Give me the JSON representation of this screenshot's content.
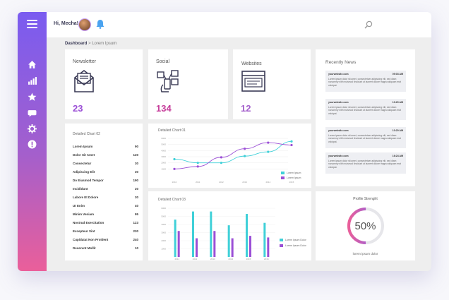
{
  "header": {
    "greeting": "Hi, Mecha!"
  },
  "breadcrumb": {
    "root": "Dashboard",
    "separator": " > ",
    "current": "Lorem Ipsum"
  },
  "colors": {
    "accent_purple": "#7a5cf0",
    "accent_pink": "#ea5f9a",
    "cyan": "#3fd0d8",
    "violet": "#9b4fd6"
  },
  "stats": [
    {
      "title": "Newsletter",
      "value": "23",
      "icon": "envelope-icon",
      "color": "#9b4fd6"
    },
    {
      "title": "Social",
      "value": "134",
      "icon": "social-icon",
      "color": "#c63c9a"
    },
    {
      "title": "Websites",
      "value": "12",
      "icon": "website-icon",
      "color": "#a45fcc"
    }
  ],
  "news": {
    "title": "Recently News",
    "items": [
      {
        "site": "yourwebsite.com",
        "time": "09:03 AM",
        "text": "Lorem ipsum dolor sit amet, consectetuer adipiscing elit, sed diam nonummy nibh euismod tincidunt ut laoreet dolore magna aliquam erat volutpat."
      },
      {
        "site": "yourwebsite.com",
        "time": "10:20 AM",
        "text": "Lorem ipsum dolor sit amet, consectetuer adipiscing elit, sed diam nonummy nibh euismod tincidunt ut laoreet dolore magna aliquam erat volutpat."
      },
      {
        "site": "yourwebsite.com",
        "time": "10:20 AM",
        "text": "Lorem ipsum dolor sit amet, consectetuer adipiscing elit, sed diam nonummy nibh euismod tincidunt ut laoreet dolore magna aliquam erat volutpat."
      },
      {
        "site": "yourwebsite.com",
        "time": "16:24 AM",
        "text": "Lorem ipsum dolor sit amet, consectetuer adipiscing elit, sed diam nonummy nibh euismod tincidunt ut laoreet dolore magna aliquam erat volutpat."
      }
    ]
  },
  "detailed_list": {
    "title": "Detailed Chart 02",
    "rows": [
      {
        "label": "Lorem Ipsum",
        "value": "90"
      },
      {
        "label": "Dolor Sit Amet",
        "value": "120"
      },
      {
        "label": "Consectetur",
        "value": "30"
      },
      {
        "label": "Adipiscing Elit",
        "value": "30"
      },
      {
        "label": "Do Eiusmod Tempor",
        "value": "190"
      },
      {
        "label": "Incididunt",
        "value": "20"
      },
      {
        "label": "Labore Et Dolore",
        "value": "30"
      },
      {
        "label": "Ut Enim",
        "value": "40"
      },
      {
        "label": "Minim Veniam",
        "value": "95"
      },
      {
        "label": "Nostrud Exercitation",
        "value": "123"
      },
      {
        "label": "Excepteur Sint",
        "value": "230"
      },
      {
        "label": "Cupidatat Non Proident",
        "value": "240"
      },
      {
        "label": "Deserunt Mollit",
        "value": "10"
      }
    ]
  },
  "line_chart": {
    "title": "Detailed Chart 01",
    "chart_data": {
      "type": "line",
      "categories": [
        "2010",
        "2011",
        "2012",
        "2013",
        "2014",
        "2015"
      ],
      "ylim": [
        0,
        6000
      ],
      "yticks": [
        "6000",
        "5000",
        "4000",
        "3000",
        "2000",
        "1000"
      ],
      "series": [
        {
          "name": "Lorem Ipsum",
          "color": "#3fd0d8",
          "values": [
            2600,
            2000,
            2000,
            3100,
            3800,
            5500
          ]
        },
        {
          "name": "Lorem Ipsum",
          "color": "#9b4fd6",
          "values": [
            1000,
            1400,
            2900,
            4300,
            5300,
            4900
          ]
        }
      ]
    }
  },
  "bar_chart": {
    "title": "Detailed Chart 03",
    "chart_data": {
      "type": "bar",
      "categories": [
        "2011",
        "2012",
        "2013",
        "2014",
        "2015",
        "2016"
      ],
      "ylim": [
        0,
        6000
      ],
      "yticks": [
        "6000",
        "5000",
        "4000",
        "3000",
        "2000",
        "1000"
      ],
      "series": [
        {
          "name": "Lorem Ipsum Dolor",
          "color": "#3fd0d8",
          "values": [
            4600,
            5600,
            5600,
            3900,
            5300,
            4200
          ]
        },
        {
          "name": "Lorem Ipsum Dolor",
          "color": "#9b4fd6",
          "values": [
            3200,
            2300,
            3200,
            2300,
            2600,
            2400
          ]
        }
      ]
    }
  },
  "profile": {
    "title": "Profile Strenght",
    "percent": "50%",
    "progress": 0.5,
    "footer": "lorem ipsum dolor"
  }
}
